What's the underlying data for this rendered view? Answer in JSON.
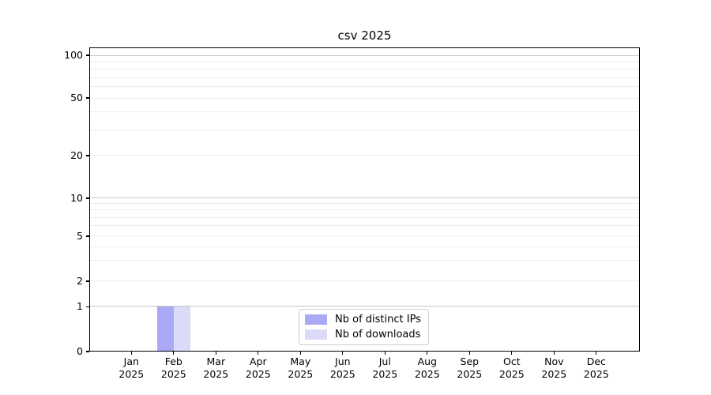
{
  "figure": {
    "background": "#ffffff"
  },
  "chart_data": {
    "type": "bar",
    "title": "csv 2025",
    "categories": [
      "Jan 2025",
      "Feb 2025",
      "Mar 2025",
      "Apr 2025",
      "May 2025",
      "Jun 2025",
      "Jul 2025",
      "Aug 2025",
      "Sep 2025",
      "Oct 2025",
      "Nov 2025",
      "Dec 2025"
    ],
    "x_tick_labels": [
      {
        "month": "Jan",
        "year": "2025"
      },
      {
        "month": "Feb",
        "year": "2025"
      },
      {
        "month": "Mar",
        "year": "2025"
      },
      {
        "month": "Apr",
        "year": "2025"
      },
      {
        "month": "May",
        "year": "2025"
      },
      {
        "month": "Jun",
        "year": "2025"
      },
      {
        "month": "Jul",
        "year": "2025"
      },
      {
        "month": "Aug",
        "year": "2025"
      },
      {
        "month": "Sep",
        "year": "2025"
      },
      {
        "month": "Oct",
        "year": "2025"
      },
      {
        "month": "Nov",
        "year": "2025"
      },
      {
        "month": "Dec",
        "year": "2025"
      }
    ],
    "series": [
      {
        "name": "Nb of distinct IPs",
        "color": "#a9a9f6",
        "values": [
          0,
          1,
          0,
          0,
          0,
          0,
          0,
          0,
          0,
          0,
          0,
          0
        ]
      },
      {
        "name": "Nb of downloads",
        "color": "#dbdbf9",
        "values": [
          0,
          1,
          0,
          0,
          0,
          0,
          0,
          0,
          0,
          0,
          0,
          0
        ]
      }
    ],
    "yscale": "symlog",
    "ylim": [
      0,
      110
    ],
    "ytick_labels": [
      0,
      1,
      2,
      5,
      10,
      20,
      50,
      100
    ],
    "grid": "horizontal, log minor gridlines",
    "legend": {
      "position": "lower center",
      "entries": [
        "Nb of distinct IPs",
        "Nb of downloads"
      ]
    },
    "colors": {
      "spine": "#000000",
      "grid_major": "#c6c6c6",
      "grid_minor": "#ececec"
    }
  }
}
